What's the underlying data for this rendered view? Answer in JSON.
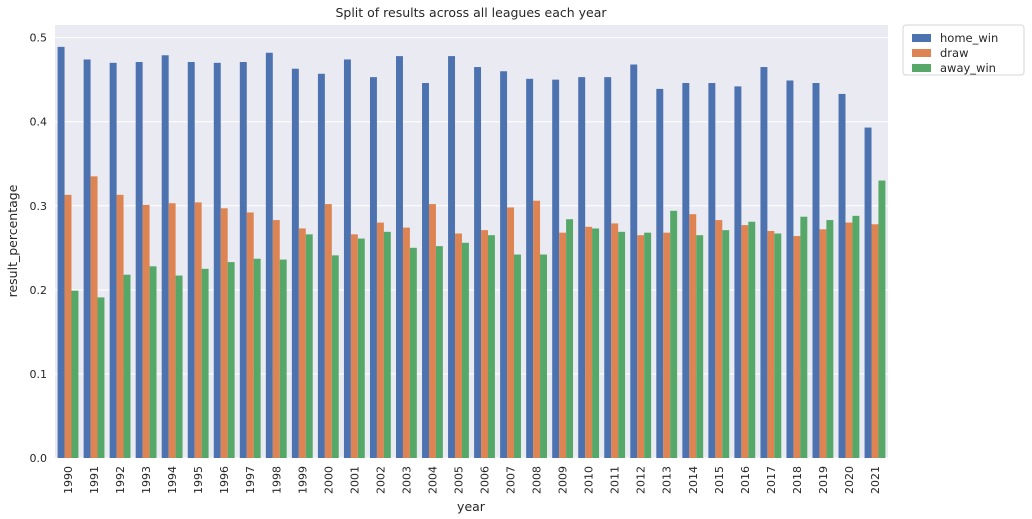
{
  "chart_data": {
    "type": "bar",
    "title": "Split of results across all leagues each year",
    "xlabel": "year",
    "ylabel": "result_percentage",
    "ylim": [
      0,
      0.515
    ],
    "yticks": [
      "0.0",
      "0.1",
      "0.2",
      "0.3",
      "0.4",
      "0.5"
    ],
    "grid": true,
    "legend_position": "outside-top-right",
    "categories": [
      "1990",
      "1991",
      "1992",
      "1993",
      "1994",
      "1995",
      "1996",
      "1997",
      "1998",
      "1999",
      "2000",
      "2001",
      "2002",
      "2003",
      "2004",
      "2005",
      "2006",
      "2007",
      "2008",
      "2009",
      "2010",
      "2011",
      "2012",
      "2013",
      "2014",
      "2015",
      "2016",
      "2017",
      "2018",
      "2019",
      "2020",
      "2021"
    ],
    "series": [
      {
        "name": "home_win",
        "color": "#4c72b0",
        "values": [
          0.489,
          0.474,
          0.47,
          0.471,
          0.479,
          0.471,
          0.47,
          0.471,
          0.482,
          0.463,
          0.457,
          0.474,
          0.453,
          0.478,
          0.446,
          0.478,
          0.465,
          0.46,
          0.451,
          0.45,
          0.453,
          0.453,
          0.468,
          0.439,
          0.446,
          0.446,
          0.442,
          0.465,
          0.449,
          0.446,
          0.433,
          0.393
        ]
      },
      {
        "name": "draw",
        "color": "#dd8452",
        "values": [
          0.313,
          0.335,
          0.313,
          0.301,
          0.303,
          0.304,
          0.297,
          0.292,
          0.283,
          0.273,
          0.302,
          0.266,
          0.28,
          0.274,
          0.302,
          0.267,
          0.271,
          0.298,
          0.306,
          0.268,
          0.275,
          0.279,
          0.265,
          0.268,
          0.29,
          0.283,
          0.277,
          0.27,
          0.264,
          0.272,
          0.28,
          0.278
        ]
      },
      {
        "name": "away_win",
        "color": "#55a868",
        "values": [
          0.199,
          0.191,
          0.218,
          0.228,
          0.217,
          0.225,
          0.233,
          0.237,
          0.236,
          0.266,
          0.241,
          0.261,
          0.269,
          0.25,
          0.252,
          0.256,
          0.265,
          0.242,
          0.242,
          0.284,
          0.273,
          0.269,
          0.268,
          0.294,
          0.265,
          0.271,
          0.281,
          0.267,
          0.287,
          0.283,
          0.288,
          0.33
        ]
      }
    ]
  }
}
